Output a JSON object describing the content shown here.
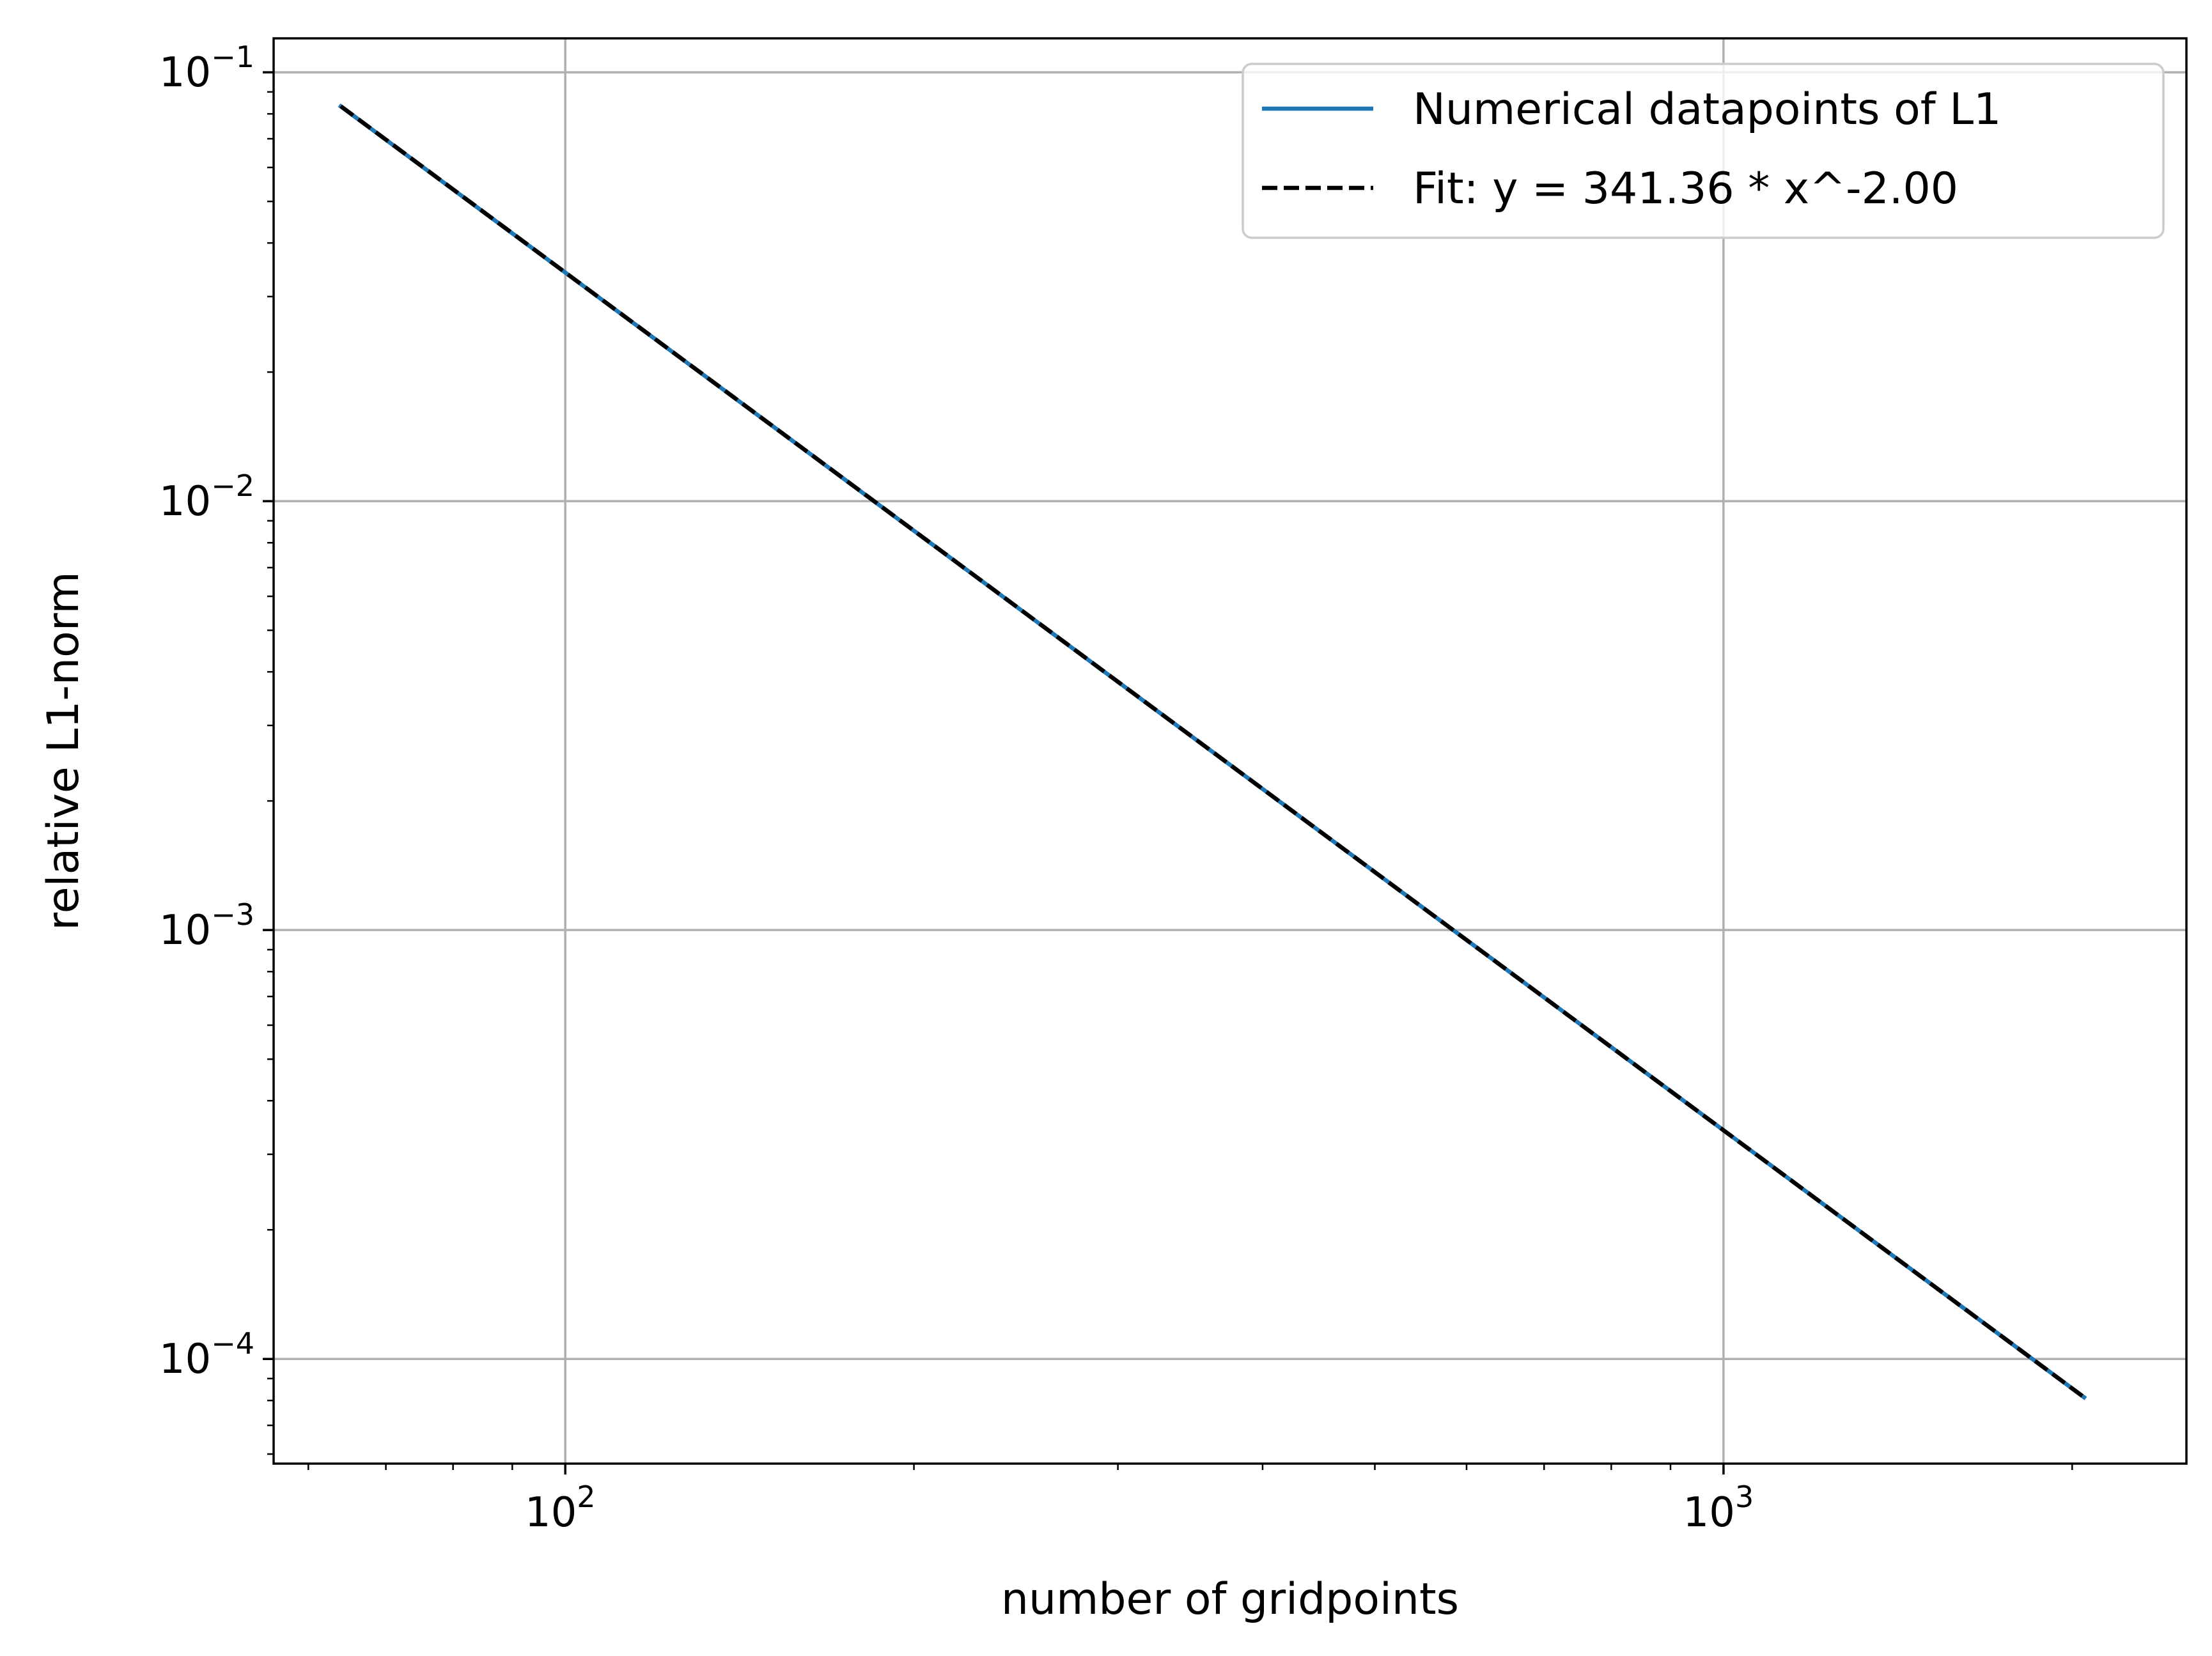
{
  "chart_data": {
    "type": "line",
    "xlabel": "number of gridpoints",
    "ylabel": "relative L1-norm",
    "xscale": "log",
    "yscale": "log",
    "xlim": [
      56,
      2510
    ],
    "ylim": [
      5.7e-05,
      0.12
    ],
    "grid": true,
    "legend_position": "top-right",
    "x_major_ticks": [
      {
        "value": 100,
        "base": "10",
        "exp": "2"
      },
      {
        "value": 1000,
        "base": "10",
        "exp": "3"
      }
    ],
    "y_major_ticks": [
      {
        "value": 0.1,
        "base": "10",
        "exp": "−1"
      },
      {
        "value": 0.01,
        "base": "10",
        "exp": "−2"
      },
      {
        "value": 0.001,
        "base": "10",
        "exp": "−3"
      },
      {
        "value": 0.0001,
        "base": "10",
        "exp": "−4"
      }
    ],
    "series": [
      {
        "name": "Numerical datapoints of L1",
        "color": "#1f77b4",
        "style": "solid",
        "x": [
          64,
          128,
          256,
          512,
          1024,
          2048
        ],
        "y": [
          0.0833,
          0.02083,
          0.005208,
          0.001302,
          0.0003255,
          8.14e-05
        ]
      },
      {
        "name": "Fit: y = 341.36 * x^-2.00",
        "color": "#000000",
        "style": "dashed",
        "x": [
          64,
          128,
          256,
          512,
          1024,
          2048
        ],
        "y": [
          0.08334,
          0.020835,
          0.005209,
          0.001302,
          0.0003255,
          8.14e-05
        ]
      }
    ]
  }
}
